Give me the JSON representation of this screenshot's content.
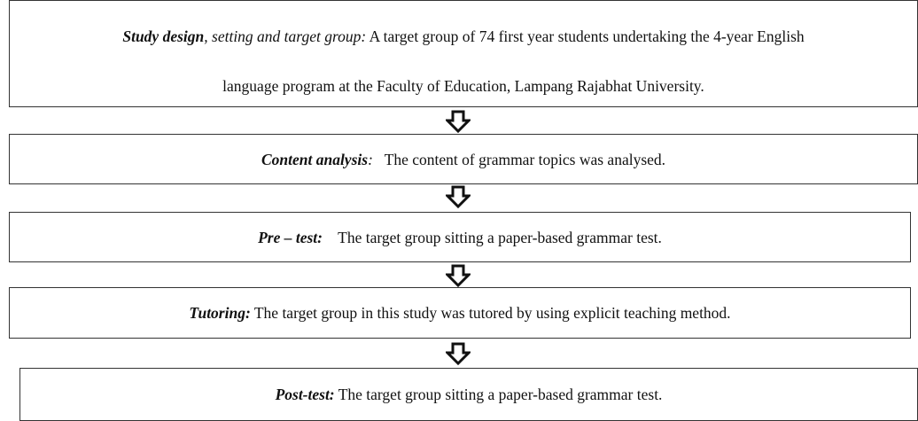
{
  "nodes": [
    {
      "heading_bold": "Study design",
      "heading_italic": ", setting and target group:",
      "line1": " A target group of 74 first year students undertaking the 4-year English",
      "line2": "language program at the Faculty of Education, Lampang Rajabhat University."
    },
    {
      "heading_bold": "Content analysis",
      "heading_italic": ":",
      "text": "   The content of grammar topics was analysed."
    },
    {
      "heading_bold": "Pre – test:",
      "text": "    The target group sitting a paper-based grammar test."
    },
    {
      "heading_bold": "Tutoring:",
      "text": " The target group in this study was tutored by using explicit teaching method."
    },
    {
      "heading_bold": "Post-test:",
      "text": " The target group sitting a paper-based grammar test."
    }
  ]
}
